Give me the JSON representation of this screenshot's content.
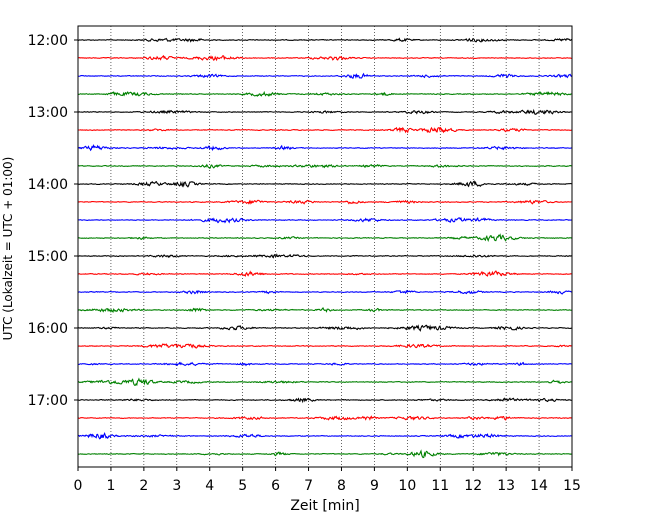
{
  "chart_data": {
    "type": "line",
    "title": "",
    "xlabel": "Zeit  [min]",
    "ylabel": "UTC (Lokalzeit = UTC + 01:00)",
    "xlim": [
      0,
      15
    ],
    "x_ticks": [
      "0",
      "1",
      "2",
      "3",
      "4",
      "5",
      "6",
      "7",
      "8",
      "9",
      "10",
      "11",
      "12",
      "13",
      "14",
      "15"
    ],
    "y_ticks": [
      "12:00",
      "13:00",
      "14:00",
      "15:00",
      "16:00",
      "17:00"
    ],
    "grid": "vertical dotted",
    "trace_interval_minutes": 15,
    "color_cycle": [
      "#000000",
      "#ff0000",
      "#0000ff",
      "#008000"
    ],
    "traces": [
      {
        "start": "12:00",
        "color": "#000000"
      },
      {
        "start": "12:15",
        "color": "#ff0000"
      },
      {
        "start": "12:30",
        "color": "#0000ff"
      },
      {
        "start": "12:45",
        "color": "#008000"
      },
      {
        "start": "13:00",
        "color": "#000000"
      },
      {
        "start": "13:15",
        "color": "#ff0000"
      },
      {
        "start": "13:30",
        "color": "#0000ff"
      },
      {
        "start": "13:45",
        "color": "#008000"
      },
      {
        "start": "14:00",
        "color": "#000000"
      },
      {
        "start": "14:15",
        "color": "#ff0000"
      },
      {
        "start": "14:30",
        "color": "#0000ff"
      },
      {
        "start": "14:45",
        "color": "#008000"
      },
      {
        "start": "15:00",
        "color": "#000000"
      },
      {
        "start": "15:15",
        "color": "#ff0000"
      },
      {
        "start": "15:30",
        "color": "#0000ff"
      },
      {
        "start": "15:45",
        "color": "#008000"
      },
      {
        "start": "16:00",
        "color": "#000000"
      },
      {
        "start": "16:15",
        "color": "#ff0000"
      },
      {
        "start": "16:30",
        "color": "#0000ff"
      },
      {
        "start": "16:45",
        "color": "#008000"
      },
      {
        "start": "17:00",
        "color": "#000000"
      },
      {
        "start": "17:15",
        "color": "#ff0000"
      },
      {
        "start": "17:30",
        "color": "#0000ff"
      },
      {
        "start": "17:45",
        "color": "#008000"
      }
    ]
  }
}
